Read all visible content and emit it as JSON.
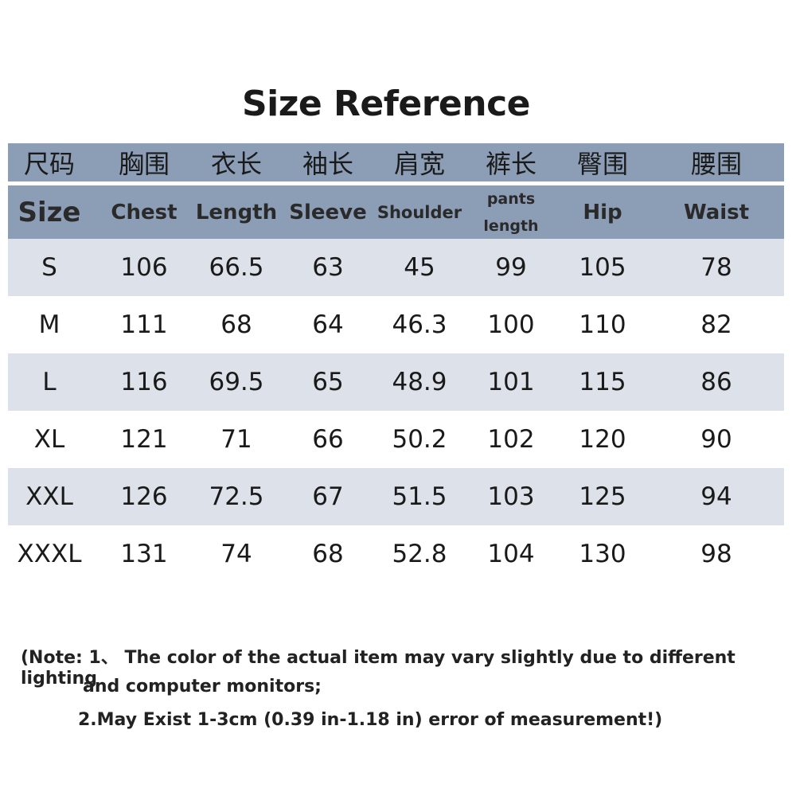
{
  "title": "Size Reference",
  "colors": {
    "header_bg": "#8c9db6",
    "stripe_bg": "#dde2ea"
  },
  "headers_zh": [
    "尺码",
    "胸围",
    "衣长",
    "袖长",
    "肩宽",
    "裤长",
    "臀围",
    "腰围"
  ],
  "headers_en": [
    "Size",
    "Chest",
    "Length",
    "Sleeve",
    "Shoulder",
    "pants length",
    "Hip",
    "Waist"
  ],
  "pants_length_lines": [
    "pants",
    "length"
  ],
  "rows": [
    [
      "S",
      "106",
      "66.5",
      "63",
      "45",
      "99",
      "105",
      "78"
    ],
    [
      "M",
      "111",
      "68",
      "64",
      "46.3",
      "100",
      "110",
      "82"
    ],
    [
      "L",
      "116",
      "69.5",
      "65",
      "48.9",
      "101",
      "115",
      "86"
    ],
    [
      "XL",
      "121",
      "71",
      "66",
      "50.2",
      "102",
      "120",
      "90"
    ],
    [
      "XXL",
      "126",
      "72.5",
      "67",
      "51.5",
      "103",
      "125",
      "94"
    ],
    [
      "XXXL",
      "131",
      "74",
      "68",
      "52.8",
      "104",
      "130",
      "98"
    ]
  ],
  "notes": [
    "(Note: 1、  The color of the actual item may vary slightly due to different lighting",
    "and computer monitors;",
    "2.May Exist 1-3cm (0.39 in-1.18 in) error of measurement!)"
  ]
}
